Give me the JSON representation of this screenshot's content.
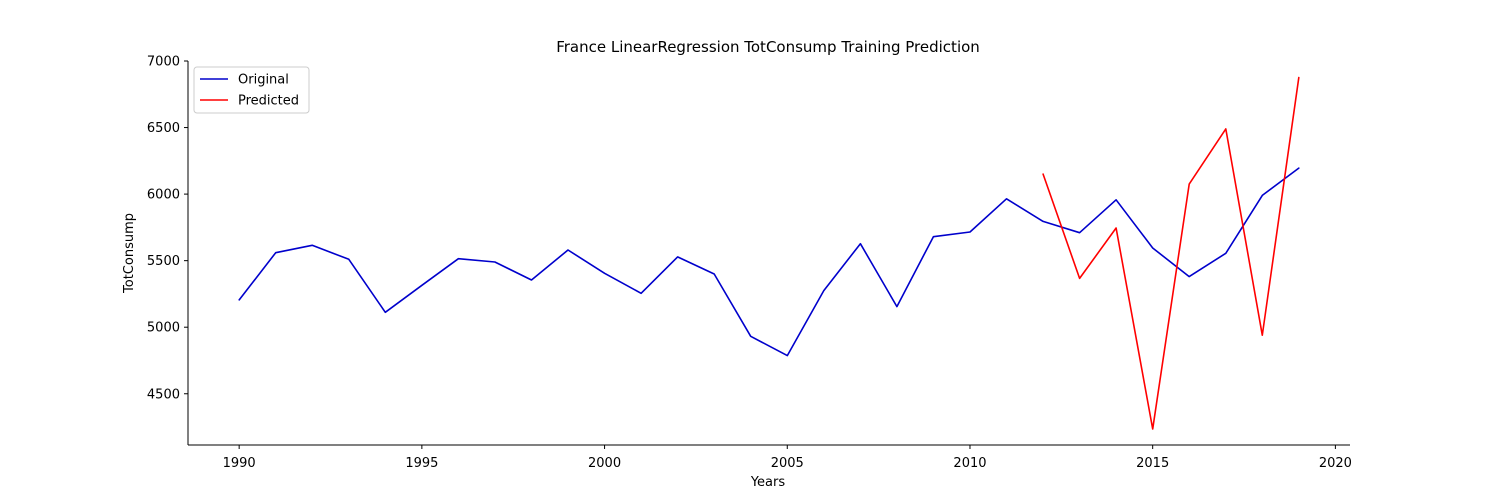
{
  "chart_data": {
    "type": "line",
    "title": "France LinearRegression TotConsump Training Prediction",
    "xlabel": "Years",
    "ylabel": "TotConsump",
    "xlim": [
      1988.6,
      2020.4
    ],
    "ylim": [
      4115,
      7000
    ],
    "xticks": [
      1990,
      1995,
      2000,
      2005,
      2010,
      2015,
      2020
    ],
    "yticks": [
      4500,
      5000,
      5500,
      6000,
      6500,
      7000
    ],
    "grid": false,
    "legend_position": "top-left",
    "series": [
      {
        "name": "Original",
        "color": "#0000cc",
        "x": [
          1990,
          1991,
          1992,
          1993,
          1994,
          1995,
          1996,
          1997,
          1998,
          1999,
          2000,
          2001,
          2002,
          2003,
          2004,
          2005,
          2006,
          2007,
          2008,
          2009,
          2010,
          2011,
          2012,
          2013,
          2014,
          2015,
          2016,
          2017,
          2018,
          2019
        ],
        "y": [
          5205,
          5560,
          5615,
          5510,
          5112,
          5315,
          5515,
          5490,
          5355,
          5580,
          5405,
          5255,
          5528,
          5400,
          4932,
          4787,
          5275,
          5627,
          5155,
          5680,
          5715,
          5965,
          5795,
          5710,
          5957,
          5595,
          5380,
          5555,
          5990,
          6195
        ]
      },
      {
        "name": "Predicted",
        "color": "#ff0000",
        "x": [
          2012,
          2013,
          2014,
          2015,
          2016,
          2017,
          2018,
          2019
        ],
        "y": [
          6150,
          5367,
          5745,
          4235,
          6075,
          6490,
          4940,
          6875
        ]
      }
    ]
  }
}
